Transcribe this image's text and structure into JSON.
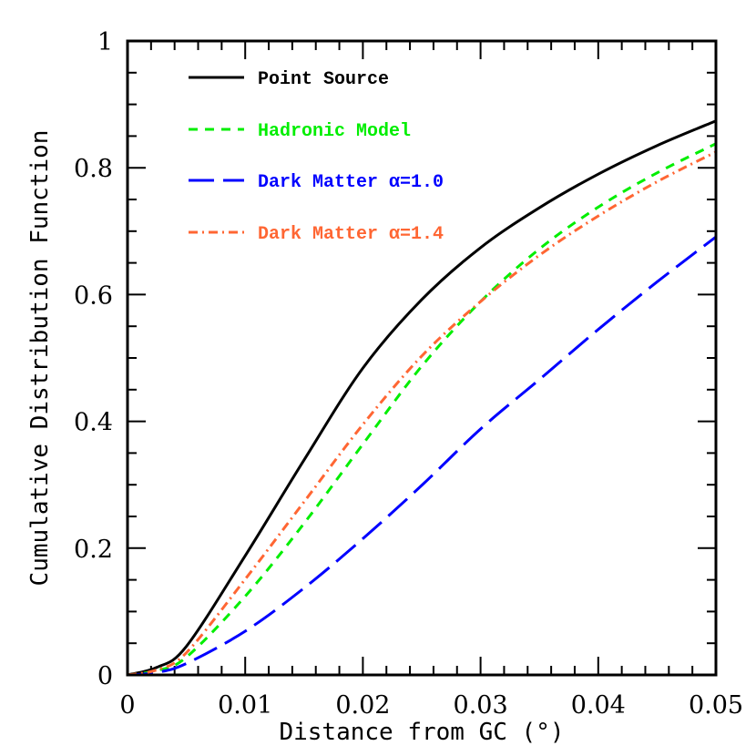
{
  "chart_data": {
    "type": "line",
    "title": "",
    "xlabel": "Distance from GC (°)",
    "ylabel": "Cumulative Distribution Function",
    "xlim": [
      0,
      0.05
    ],
    "ylim": [
      0,
      1
    ],
    "x_ticks": [
      "0",
      "0.01",
      "0.02",
      "0.03",
      "0.04",
      "0.05"
    ],
    "y_ticks": [
      "0",
      "0.2",
      "0.4",
      "0.6",
      "0.8",
      "1"
    ],
    "grid": false,
    "legend_position": "upper left (inside)",
    "x": [
      0,
      0.0025,
      0.005,
      0.01,
      0.015,
      0.02,
      0.025,
      0.03,
      0.035,
      0.04,
      0.045,
      0.05
    ],
    "series": [
      {
        "name": "Point Source",
        "color": "#000000",
        "style": "solid",
        "values": [
          0,
          0.012,
          0.045,
          0.188,
          0.339,
          0.484,
          0.592,
          0.674,
          0.737,
          0.79,
          0.835,
          0.874
        ]
      },
      {
        "name": "Hadronic Model",
        "color": "#00ee00",
        "style": "dashed",
        "values": [
          0,
          0.007,
          0.028,
          0.124,
          0.239,
          0.364,
          0.487,
          0.589,
          0.672,
          0.738,
          0.792,
          0.838
        ]
      },
      {
        "name": "Dark Matter α=1.0",
        "color": "#0000ff",
        "style": "long-dashed",
        "values": [
          0,
          0.004,
          0.018,
          0.069,
          0.137,
          0.215,
          0.299,
          0.388,
          0.466,
          0.545,
          0.62,
          0.691
        ]
      },
      {
        "name": "Dark Matter α=1.4",
        "color": "#ff6633",
        "style": "dash-dot",
        "values": [
          0,
          0.008,
          0.035,
          0.151,
          0.273,
          0.395,
          0.503,
          0.589,
          0.662,
          0.724,
          0.778,
          0.825
        ]
      }
    ]
  },
  "legend": {
    "items": [
      {
        "label": "Point Source",
        "color": "#000000"
      },
      {
        "label": "Hadronic Model",
        "color": "#00ee00"
      },
      {
        "label": "Dark Matter α=1.0",
        "color": "#0000ff"
      },
      {
        "label": "Dark Matter α=1.4",
        "color": "#ff6633"
      }
    ]
  }
}
